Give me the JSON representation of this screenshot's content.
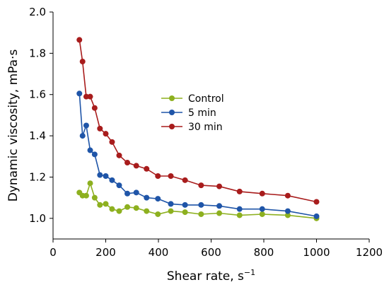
{
  "chart_data": {
    "type": "line",
    "title": "",
    "xlabel": "Shear rate, s",
    "xlabel_superscript": "−1",
    "ylabel": "Dynamic viscosity, mPa·s",
    "xlim": [
      0,
      1200
    ],
    "ylim": [
      0.9,
      2.0
    ],
    "xticks": [
      0,
      200,
      400,
      600,
      800,
      1000,
      1200
    ],
    "yticks": [
      1.0,
      1.2,
      1.4,
      1.6,
      1.8,
      2.0
    ],
    "xtick_labels": [
      "0",
      "200",
      "400",
      "600",
      "800",
      "1000",
      "1200"
    ],
    "ytick_labels": [
      "1.0",
      "1.2",
      "1.4",
      "1.6",
      "1.8",
      "2.0"
    ],
    "grid": false,
    "legend_position": "center",
    "series": [
      {
        "name": "Control",
        "color": "#8db01f",
        "x": [
          100,
          112,
          126,
          141,
          158,
          178,
          200,
          224,
          251,
          282,
          316,
          355,
          398,
          447,
          501,
          562,
          631,
          708,
          794,
          891,
          1000
        ],
        "y": [
          1.125,
          1.11,
          1.11,
          1.17,
          1.1,
          1.065,
          1.07,
          1.045,
          1.035,
          1.055,
          1.05,
          1.035,
          1.02,
          1.035,
          1.03,
          1.02,
          1.025,
          1.015,
          1.02,
          1.015,
          1.0
        ]
      },
      {
        "name": "5 min",
        "color": "#1f55a8",
        "x": [
          100,
          112,
          126,
          141,
          158,
          178,
          200,
          224,
          251,
          282,
          316,
          355,
          398,
          447,
          501,
          562,
          631,
          708,
          794,
          891,
          1000
        ],
        "y": [
          1.605,
          1.4,
          1.45,
          1.33,
          1.31,
          1.21,
          1.205,
          1.185,
          1.16,
          1.12,
          1.125,
          1.1,
          1.095,
          1.07,
          1.065,
          1.065,
          1.06,
          1.045,
          1.045,
          1.035,
          1.01
        ]
      },
      {
        "name": "30 min",
        "color": "#a81c1c",
        "x": [
          100,
          112,
          126,
          141,
          158,
          178,
          200,
          224,
          251,
          282,
          316,
          355,
          398,
          447,
          501,
          562,
          631,
          708,
          794,
          891,
          1000
        ],
        "y": [
          1.865,
          1.76,
          1.59,
          1.59,
          1.535,
          1.435,
          1.41,
          1.37,
          1.305,
          1.27,
          1.255,
          1.24,
          1.205,
          1.205,
          1.185,
          1.16,
          1.155,
          1.13,
          1.12,
          1.11,
          1.08
        ]
      }
    ]
  }
}
